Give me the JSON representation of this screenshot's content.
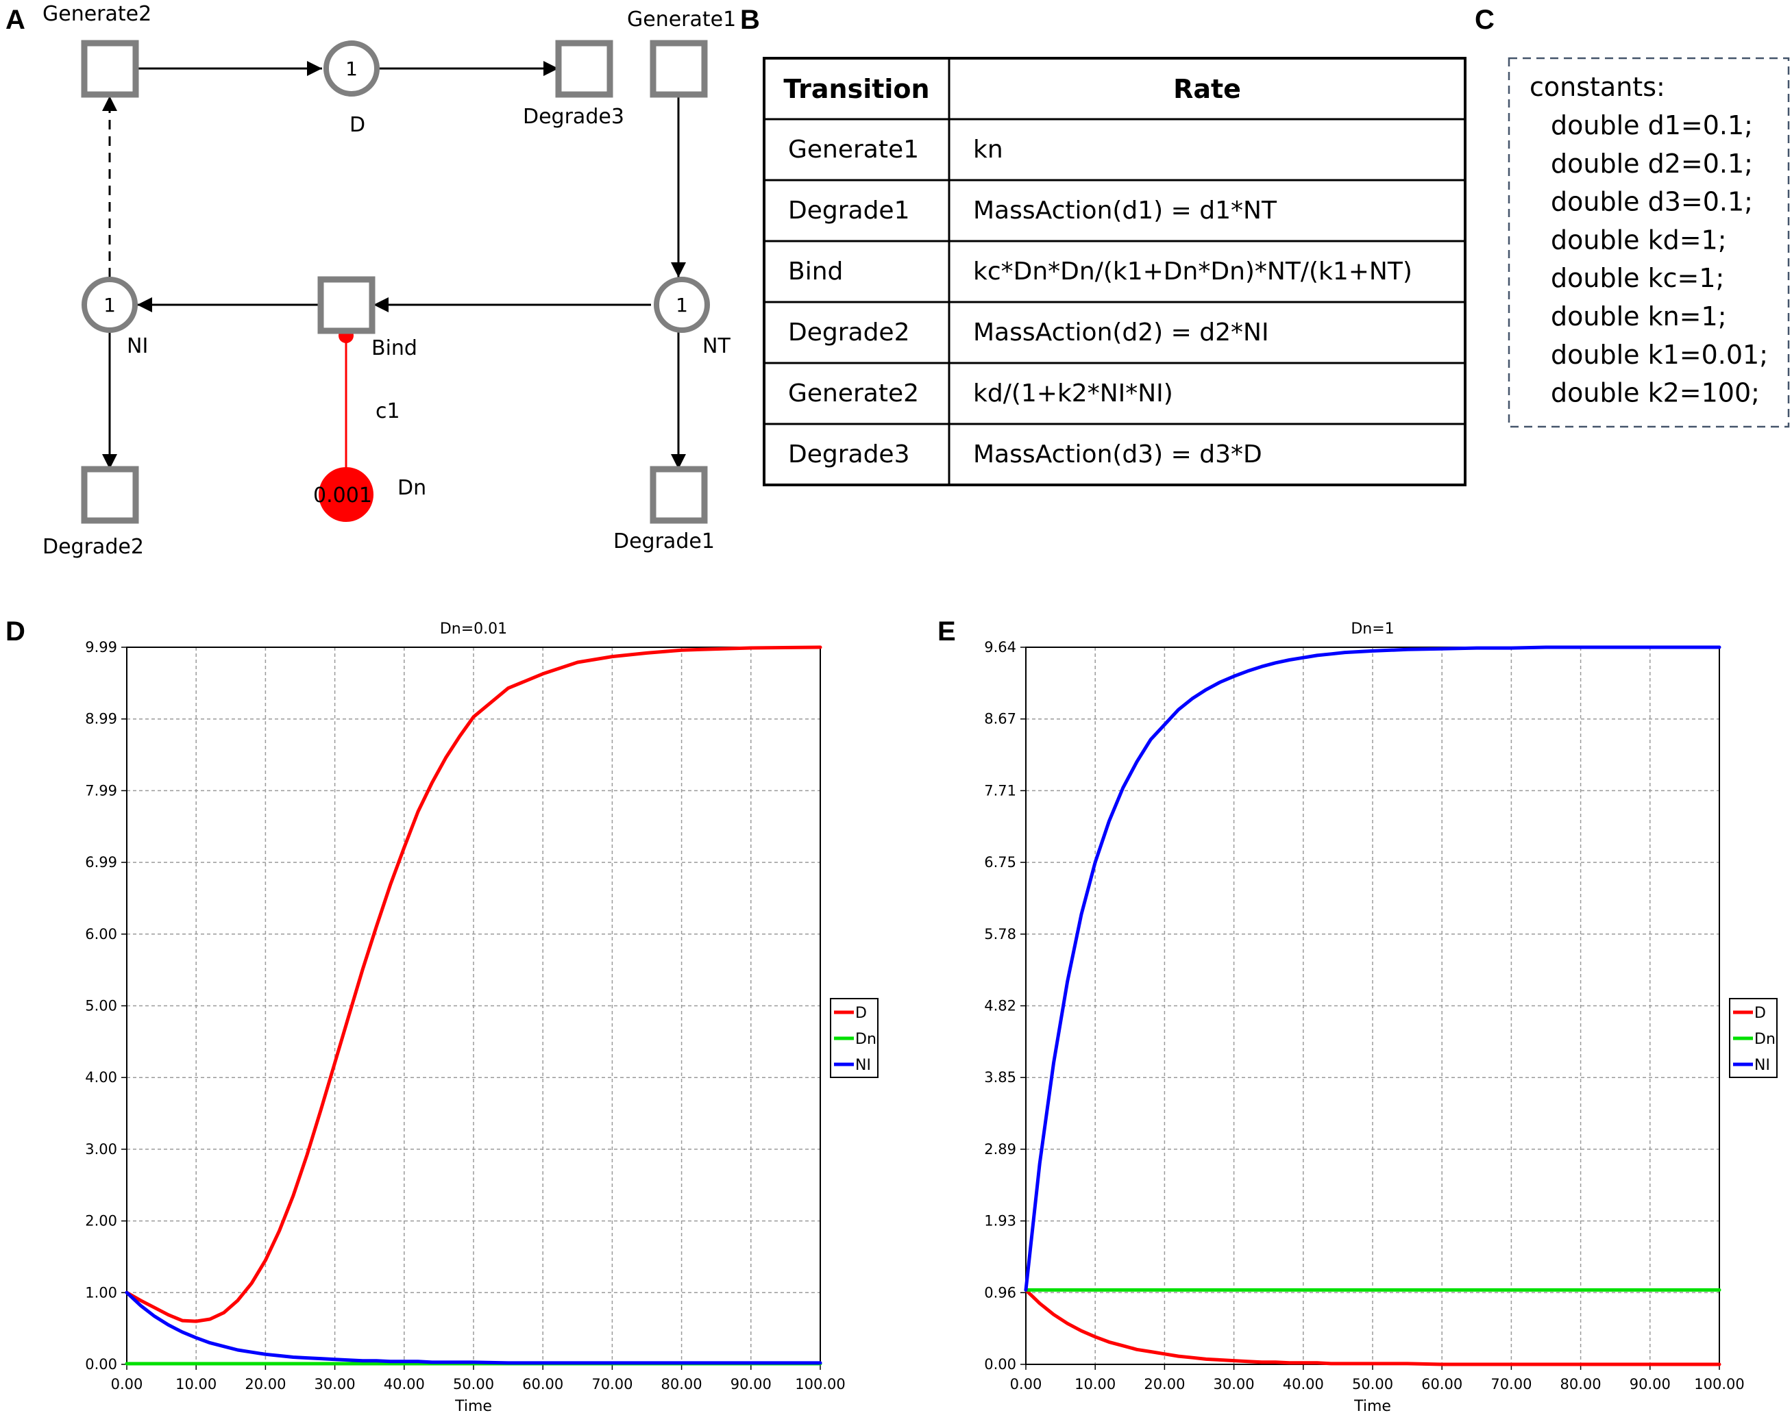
{
  "panels": {
    "A": {
      "letter": "A",
      "places": {
        "D": {
          "name": "D",
          "tokens": "1"
        },
        "NI": {
          "name": "NI",
          "tokens": "1"
        },
        "NT": {
          "name": "NT",
          "tokens": "1"
        },
        "Dn": {
          "name": "Dn",
          "tokens": "0.001",
          "color": "#ff0000"
        }
      },
      "transitions": {
        "Generate2": "Generate2",
        "Generate1": "Generate1",
        "Degrade3": "Degrade3",
        "Bind": "Bind",
        "Degrade2": "Degrade2",
        "Degrade1": "Degrade1"
      },
      "arc_label": "c1"
    },
    "B": {
      "letter": "B",
      "headers": [
        "Transition",
        "Rate"
      ],
      "rows": [
        [
          "Generate1",
          "kn"
        ],
        [
          "Degrade1",
          "MassAction(d1) = d1*NT"
        ],
        [
          "Bind",
          "kc*Dn*Dn/(k1+Dn*Dn)*NT/(k1+NT)"
        ],
        [
          "Degrade2",
          "MassAction(d2) = d2*NI"
        ],
        [
          "Generate2",
          "kd/(1+k2*NI*NI)"
        ],
        [
          "Degrade3",
          "MassAction(d3) = d3*D"
        ]
      ]
    },
    "C": {
      "letter": "C",
      "heading": "constants:",
      "lines": [
        "double d1=0.1;",
        "double d2=0.1;",
        "double d3=0.1;",
        "double kd=1;",
        "double kc=1;",
        "double kn=1;",
        "double k1=0.01;",
        "double k2=100;"
      ]
    },
    "D": {
      "letter": "D"
    },
    "E": {
      "letter": "E"
    }
  },
  "colors": {
    "D": "#ff0000",
    "Dn": "#00e000",
    "NI": "#0000ff"
  },
  "chart_data": [
    {
      "type": "line",
      "title": "Dn=0.01",
      "xlabel": "Time",
      "ylabel": "",
      "xlim": [
        0,
        100
      ],
      "ylim": [
        0,
        9.99
      ],
      "grid": true,
      "legend": "right",
      "x_ticks": [
        "0.00",
        "10.00",
        "20.00",
        "30.00",
        "40.00",
        "50.00",
        "60.00",
        "70.00",
        "80.00",
        "90.00",
        "100.00"
      ],
      "y_ticks": [
        "0.00",
        "1.00",
        "2.00",
        "3.00",
        "4.00",
        "5.00",
        "6.00",
        "6.99",
        "7.99",
        "8.99",
        "9.99"
      ],
      "x": [
        0,
        2,
        4,
        6,
        8,
        10,
        12,
        14,
        16,
        18,
        20,
        22,
        24,
        26,
        28,
        30,
        32,
        34,
        36,
        38,
        40,
        42,
        44,
        46,
        48,
        50,
        55,
        60,
        65,
        70,
        75,
        80,
        90,
        100
      ],
      "series": [
        {
          "name": "D",
          "color": "#ff0000",
          "values": [
            1.0,
            0.89,
            0.79,
            0.69,
            0.61,
            0.6,
            0.63,
            0.72,
            0.89,
            1.13,
            1.45,
            1.86,
            2.35,
            2.92,
            3.55,
            4.2,
            4.85,
            5.5,
            6.1,
            6.68,
            7.2,
            7.7,
            8.1,
            8.45,
            8.75,
            9.02,
            9.42,
            9.62,
            9.78,
            9.86,
            9.91,
            9.95,
            9.98,
            9.99
          ]
        },
        {
          "name": "Dn",
          "color": "#00e000",
          "values": [
            0.01,
            0.01,
            0.01,
            0.01,
            0.01,
            0.01,
            0.01,
            0.01,
            0.01,
            0.01,
            0.01,
            0.01,
            0.01,
            0.01,
            0.01,
            0.01,
            0.01,
            0.01,
            0.01,
            0.01,
            0.01,
            0.01,
            0.01,
            0.01,
            0.01,
            0.01,
            0.01,
            0.01,
            0.01,
            0.01,
            0.01,
            0.01,
            0.01,
            0.01
          ]
        },
        {
          "name": "NI",
          "color": "#0000ff",
          "values": [
            1.0,
            0.82,
            0.67,
            0.55,
            0.45,
            0.37,
            0.3,
            0.25,
            0.2,
            0.17,
            0.14,
            0.12,
            0.1,
            0.09,
            0.08,
            0.07,
            0.06,
            0.05,
            0.05,
            0.04,
            0.04,
            0.04,
            0.03,
            0.03,
            0.03,
            0.03,
            0.02,
            0.02,
            0.02,
            0.02,
            0.02,
            0.02,
            0.02,
            0.02
          ]
        }
      ]
    },
    {
      "type": "line",
      "title": "Dn=1",
      "xlabel": "Time",
      "ylabel": "",
      "xlim": [
        0,
        100
      ],
      "ylim": [
        0,
        9.64
      ],
      "grid": true,
      "legend": "right",
      "x_ticks": [
        "0.00",
        "10.00",
        "20.00",
        "30.00",
        "40.00",
        "50.00",
        "60.00",
        "70.00",
        "80.00",
        "90.00",
        "100.00"
      ],
      "y_ticks": [
        "0.00",
        "0.96",
        "1.93",
        "2.89",
        "3.85",
        "4.82",
        "5.78",
        "6.75",
        "7.71",
        "8.67",
        "9.64"
      ],
      "x": [
        0,
        2,
        4,
        6,
        8,
        10,
        12,
        14,
        16,
        18,
        20,
        22,
        24,
        26,
        28,
        30,
        32,
        34,
        36,
        38,
        40,
        42,
        44,
        46,
        48,
        50,
        55,
        60,
        65,
        70,
        75,
        80,
        90,
        100
      ],
      "series": [
        {
          "name": "D",
          "color": "#ff0000",
          "values": [
            1.0,
            0.82,
            0.67,
            0.55,
            0.45,
            0.37,
            0.3,
            0.25,
            0.2,
            0.17,
            0.14,
            0.11,
            0.09,
            0.07,
            0.06,
            0.05,
            0.04,
            0.03,
            0.03,
            0.02,
            0.02,
            0.02,
            0.01,
            0.01,
            0.01,
            0.01,
            0.01,
            0.0,
            0.0,
            0.0,
            0.0,
            0.0,
            0.0,
            0.0
          ]
        },
        {
          "name": "Dn",
          "color": "#00e000",
          "values": [
            1.0,
            1.0,
            1.0,
            1.0,
            1.0,
            1.0,
            1.0,
            1.0,
            1.0,
            1.0,
            1.0,
            1.0,
            1.0,
            1.0,
            1.0,
            1.0,
            1.0,
            1.0,
            1.0,
            1.0,
            1.0,
            1.0,
            1.0,
            1.0,
            1.0,
            1.0,
            1.0,
            1.0,
            1.0,
            1.0,
            1.0,
            1.0,
            1.0,
            1.0
          ]
        },
        {
          "name": "NI",
          "color": "#0000ff",
          "values": [
            1.0,
            2.7,
            4.05,
            5.15,
            6.05,
            6.75,
            7.3,
            7.75,
            8.1,
            8.4,
            8.6,
            8.8,
            8.95,
            9.07,
            9.17,
            9.25,
            9.32,
            9.38,
            9.43,
            9.47,
            9.5,
            9.53,
            9.55,
            9.57,
            9.58,
            9.59,
            9.61,
            9.62,
            9.63,
            9.63,
            9.64,
            9.64,
            9.64,
            9.64
          ]
        }
      ]
    }
  ]
}
